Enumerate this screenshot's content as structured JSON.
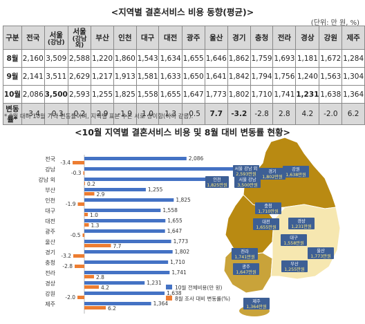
{
  "title": "<지역별 결혼서비스 비용 동향(평균)>",
  "unit": "(단위: 만 원, %)",
  "table": {
    "corner": "구분",
    "headers": [
      "전국",
      "서울",
      "서울 (강남 외)",
      "부산",
      "인천",
      "대구",
      "대전",
      "광주",
      "울산",
      "경기",
      "충청",
      "전라",
      "경상",
      "강원",
      "제주"
    ],
    "rows": [
      {
        "label": "8월",
        "values": [
          "2,160",
          "3,509",
          "2,588",
          "1,220",
          "1,860",
          "1,543",
          "1,634",
          "1,655",
          "1,646",
          "1,862",
          "1,759",
          "1,693",
          "1,181",
          "1,672",
          "1,284"
        ]
      },
      {
        "label": "9월",
        "values": [
          "2,141",
          "3,511",
          "2,629",
          "1,217",
          "1,913",
          "1,581",
          "1,633",
          "1,650",
          "1,641",
          "1,842",
          "1,794",
          "1,756",
          "1,240",
          "1,563",
          "1,304"
        ]
      },
      {
        "label": "10월",
        "values": [
          "2,086",
          "3,500",
          "2,593",
          "1,255",
          "1,825",
          "1,558",
          "1,655",
          "1,647",
          "1,773",
          "1,802",
          "1,710",
          "1,741",
          "1,231",
          "1,638",
          "1,364"
        ]
      },
      {
        "label": "변동률*",
        "values": [
          "-3.4",
          "-0.3",
          "0.2",
          "2.9",
          "-1.9",
          "1.0",
          "1.3",
          "-0.5",
          "7.7",
          "-3.2",
          "-2.8",
          "2.8",
          "4.2",
          "-2.0",
          "6.2"
        ]
      }
    ],
    "seoul_header_top": "서울",
    "seoul_header_sub": "(강남)",
    "seoul2_header_top": "서울",
    "seoul2_header_sub": "(강남 외)"
  },
  "note": "* 8월 대비 10월 가격 변동률이며, 지역별 표본 수는 서로 상이함(이하 같음).",
  "chart_title": "<10월 지역별 결혼서비스 비용 및 8월 대비 변동률 현황>",
  "chart_data": {
    "type": "bar",
    "categories": [
      "전국",
      "강남",
      "강남 외",
      "부산",
      "인천",
      "대구",
      "대전",
      "광주",
      "울산",
      "경기",
      "충청",
      "전라",
      "경상",
      "강원",
      "제주"
    ],
    "series": [
      {
        "name": "10월 전체비용(만 원)",
        "values": [
          2086,
          3500,
          2593,
          1255,
          1825,
          1558,
          1655,
          1647,
          1773,
          1802,
          1710,
          1741,
          1231,
          1638,
          1364
        ],
        "color": "#4472c4"
      },
      {
        "name": "8월 조사 대비 변동률(%)",
        "values": [
          -3.4,
          -0.3,
          0.2,
          2.9,
          -1.9,
          1.0,
          1.3,
          -0.5,
          7.7,
          -3.2,
          -2.8,
          2.8,
          4.2,
          -2.0,
          6.2
        ],
        "color": "#ed7d31"
      }
    ],
    "value_labels": [
      "2,086",
      "3,500",
      "2,593",
      "1,255",
      "1,825",
      "1,558",
      "1,655",
      "1,647",
      "1,773",
      "1,802",
      "1,710",
      "1,741",
      "1,231",
      "1,638",
      "1,364"
    ],
    "change_labels": [
      "-3.4",
      "-0.3",
      "0.2",
      "2.9",
      "-1.9",
      "1.0",
      "1.3",
      "-0.5",
      "7.7",
      "-3.2",
      "-2.8",
      "2.8",
      "4.2",
      "-2.0",
      "6.2"
    ]
  },
  "map": {
    "labels": [
      {
        "name": "서울 강남 외",
        "value": "2,593만원"
      },
      {
        "name": "인천",
        "value": "1,825만원"
      },
      {
        "name": "서울 강남",
        "value": "3,500만원"
      },
      {
        "name": "경기",
        "value": "1,802만원"
      },
      {
        "name": "강원",
        "value": "1,638만원"
      },
      {
        "name": "충청",
        "value": "1,710만원"
      },
      {
        "name": "대전",
        "value": "1,655만원"
      },
      {
        "name": "경상",
        "value": "1,231만원"
      },
      {
        "name": "대구",
        "value": "1,558만원"
      },
      {
        "name": "전라",
        "value": "1,741만원"
      },
      {
        "name": "울산",
        "value": "1,773만원"
      },
      {
        "name": "광주",
        "value": "1,647만원"
      },
      {
        "name": "부산",
        "value": "1,255만원"
      },
      {
        "name": "제주",
        "value": "1,364만원"
      }
    ],
    "colors": {
      "dark": "#b98a12",
      "mid": "#c9a33a",
      "light": "#f6e7b0",
      "box": "#3d5f95"
    }
  }
}
